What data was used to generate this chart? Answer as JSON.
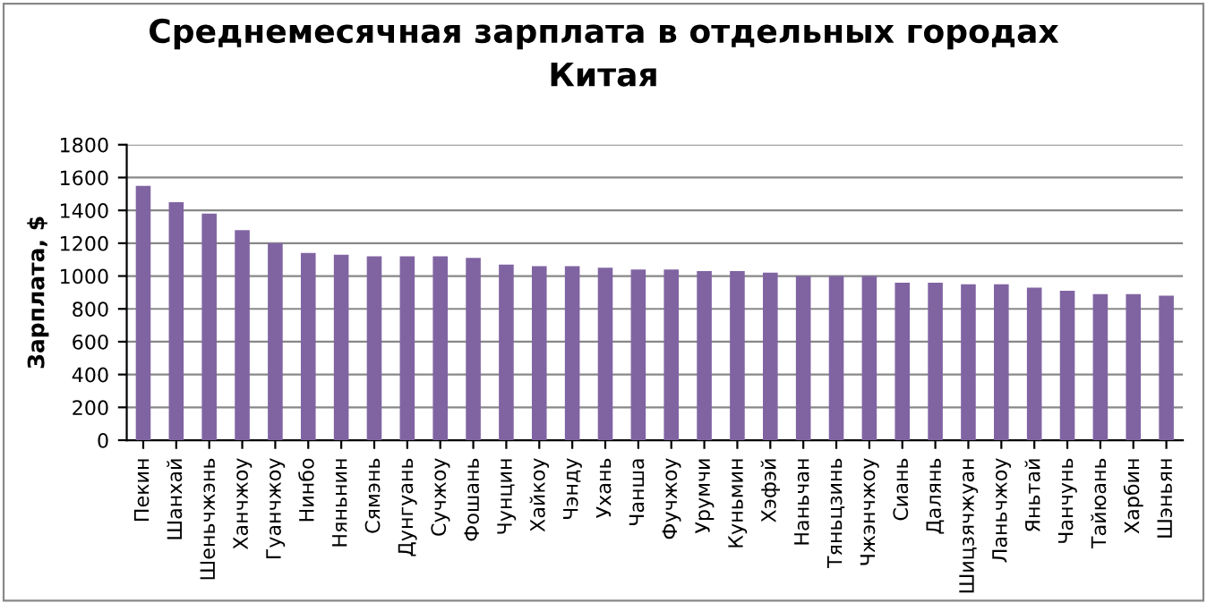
{
  "chart_data": {
    "type": "bar",
    "title": "Среднемесячная зарплата в отдельных городах\nКитая",
    "ylabel": "Зарплата, $",
    "categories": [
      "Пекин",
      "Шанхай",
      "Шеньчжэнь",
      "Ханчжоу",
      "Гуанчжоу",
      "Нинбо",
      "Няньнин",
      "Сямэнь",
      "Дунгуань",
      "Сучжоу",
      "Фошань",
      "Чунцин",
      "Хайкоу",
      "Чэнду",
      "Ухань",
      "Чанша",
      "Фучжоу",
      "Урумчи",
      "Куньмин",
      "Хэфэй",
      "Наньчан",
      "Тяньцзинь",
      "Чжэнчжоу",
      "Сиань",
      "Далянь",
      "Шицзячжуан",
      "Ланьчжоу",
      "Яньтай",
      "Чанчунь",
      "Тайюань",
      "Харбин",
      "Шэньян"
    ],
    "values": [
      1550,
      1450,
      1380,
      1280,
      1200,
      1140,
      1130,
      1120,
      1120,
      1120,
      1110,
      1070,
      1060,
      1060,
      1050,
      1040,
      1040,
      1030,
      1030,
      1020,
      1000,
      1000,
      1000,
      960,
      960,
      950,
      950,
      930,
      910,
      890,
      890,
      880
    ],
    "color": "#8064a2",
    "ylim": [
      0,
      1800
    ],
    "yticks": [
      0,
      200,
      400,
      600,
      800,
      1000,
      1200,
      1400,
      1600,
      1800
    ],
    "grid": "y",
    "legend": false
  }
}
